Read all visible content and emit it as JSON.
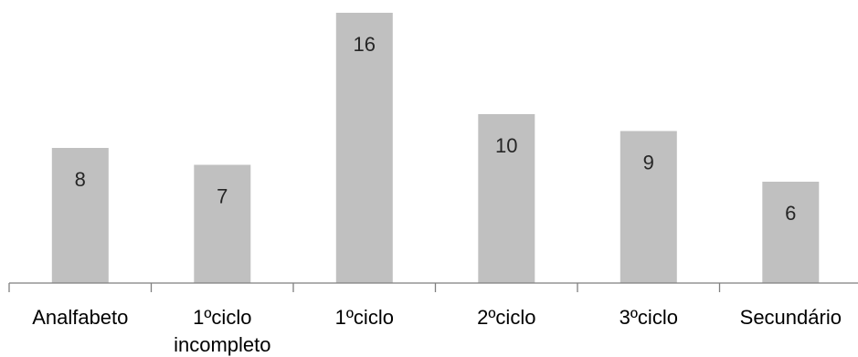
{
  "chart_data": {
    "type": "bar",
    "categories": [
      [
        "Analfabeto"
      ],
      [
        "1ºciclo",
        "incompleto"
      ],
      [
        "1ºciclo"
      ],
      [
        "2ºciclo"
      ],
      [
        "3ºciclo"
      ],
      [
        "Secundário"
      ]
    ],
    "values": [
      8,
      7,
      16,
      10,
      9,
      6
    ],
    "data_labels": [
      "8",
      "7",
      "16",
      "10",
      "9",
      "6"
    ],
    "ylim": [
      0,
      16
    ],
    "grid": false,
    "legend": "none",
    "colors": {
      "bar": "#c0c0c0",
      "axis": "#7f7f7f",
      "label": "#262626"
    }
  }
}
